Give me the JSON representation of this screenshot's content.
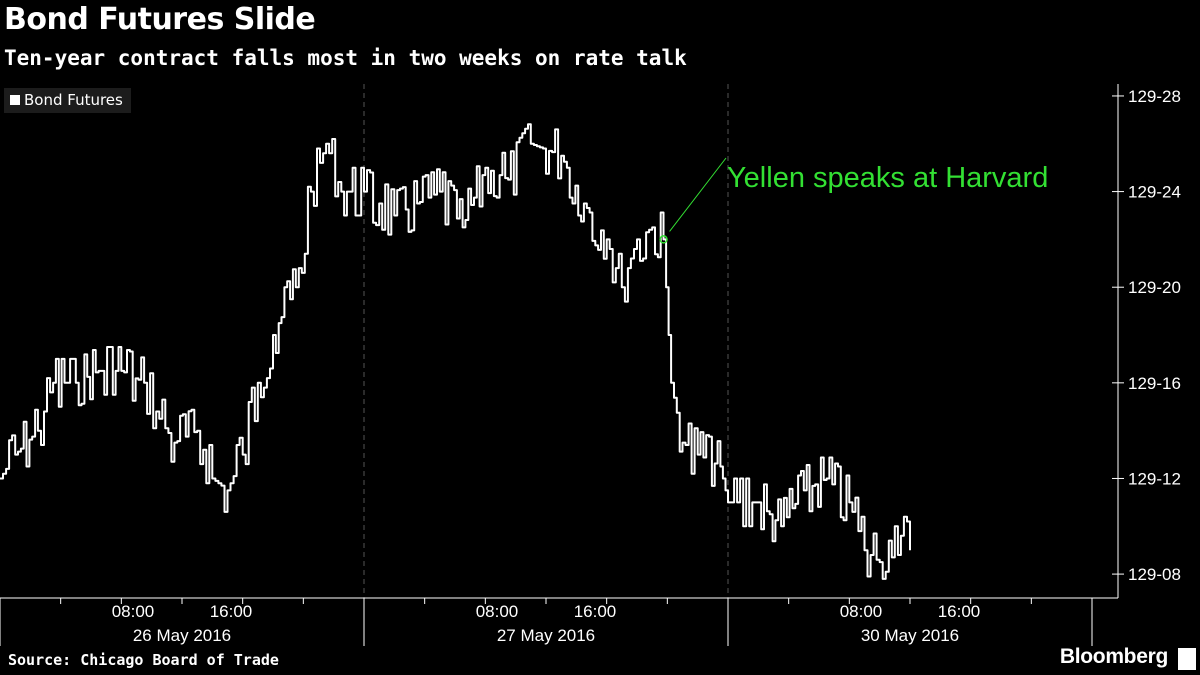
{
  "title": "Bond Futures Slide",
  "subtitle": "Ten-year contract falls most in two weeks on rate talk",
  "source": "Source: Chicago Board of Trade",
  "brand": "Bloomberg",
  "legend_label": "Bond Futures",
  "colors": {
    "background": "#000000",
    "line": "#ffffff",
    "annotation": "#33e033",
    "grid": "#555555"
  },
  "chart_data": {
    "type": "line",
    "title": "Bond Futures Slide",
    "subtitle": "Ten-year contract falls most in two weeks on rate talk",
    "series": [
      {
        "name": "Bond Futures",
        "points": [
          [
            "26 May 00:00",
            "129-12"
          ],
          [
            "26 May 01:00",
            "129-13"
          ],
          [
            "26 May 02:30",
            "129-14"
          ],
          [
            "26 May 03:30",
            "129-16"
          ],
          [
            "26 May 05:00",
            "129-16"
          ],
          [
            "26 May 06:30",
            "129-16.5"
          ],
          [
            "26 May 08:00",
            "129-16.5"
          ],
          [
            "26 May 09:30",
            "129-16"
          ],
          [
            "26 May 10:30",
            "129-14.5"
          ],
          [
            "26 May 11:30",
            "129-13.5"
          ],
          [
            "26 May 13:00",
            "129-14"
          ],
          [
            "26 May 14:00",
            "129-12"
          ],
          [
            "26 May 15:00",
            "129-11.5"
          ],
          [
            "26 May 16:00",
            "129-13"
          ],
          [
            "26 May 17:00",
            "129-16"
          ],
          [
            "26 May 18:00",
            "129-18"
          ],
          [
            "26 May 19:30",
            "129-20"
          ],
          [
            "26 May 20:30",
            "129-24"
          ],
          [
            "26 May 21:30",
            "129-26"
          ],
          [
            "26 May 22:30",
            "129-24"
          ],
          [
            "27 May 00:00",
            "129-24"
          ],
          [
            "27 May 02:00",
            "129-23"
          ],
          [
            "27 May 03:30",
            "129-23.5"
          ],
          [
            "27 May 05:00",
            "129-24"
          ],
          [
            "27 May 06:30",
            "129-22.5"
          ],
          [
            "27 May 08:00",
            "129-25"
          ],
          [
            "27 May 09:30",
            "129-24.5"
          ],
          [
            "27 May 11:00",
            "129-26"
          ],
          [
            "27 May 13:00",
            "129-25.5"
          ],
          [
            "27 May 14:30",
            "129-23.5"
          ],
          [
            "27 May 16:00",
            "129-22"
          ],
          [
            "27 May 17:00",
            "129-20"
          ],
          [
            "27 May 18:00",
            "129-22"
          ],
          [
            "27 May 19:00",
            "129-22.5"
          ],
          [
            "27 May 19:45",
            "129-22"
          ],
          [
            "27 May 20:15",
            "129-16"
          ],
          [
            "27 May 21:00",
            "129-13.5"
          ],
          [
            "27 May 22:00",
            "129-13"
          ],
          [
            "27 May 23:30",
            "129-12.5"
          ],
          [
            "30 May 00:00",
            "129-11"
          ],
          [
            "30 May 02:00",
            "129-11"
          ],
          [
            "30 May 03:30",
            "129-10"
          ],
          [
            "30 May 05:00",
            "129-11.5"
          ],
          [
            "30 May 06:30",
            "129-12"
          ],
          [
            "30 May 08:00",
            "129-11"
          ],
          [
            "30 May 09:00",
            "129-09"
          ],
          [
            "30 May 10:00",
            "129-08.5"
          ],
          [
            "30 May 11:00",
            "129-10"
          ],
          [
            "30 May 12:00",
            "129-09"
          ]
        ]
      }
    ],
    "annotation": {
      "text": "Yellen speaks at Harvard",
      "x": "27 May 19:45",
      "y": "129-22"
    },
    "y_axis": {
      "side": "right",
      "ticks": [
        "129-08",
        "129-12",
        "129-16",
        "129-20",
        "129-24",
        "129-28"
      ],
      "ylim": [
        "129-07",
        "129-28.5"
      ]
    },
    "x_axis": {
      "tick_labels": [
        "08:00",
        "16:00",
        "08:00",
        "16:00",
        "08:00",
        "16:00"
      ],
      "day_labels": [
        "26 May 2016",
        "27 May 2016",
        "30 May 2016"
      ]
    },
    "grid": "vertical dashed at day boundaries",
    "legend": "top-left"
  }
}
